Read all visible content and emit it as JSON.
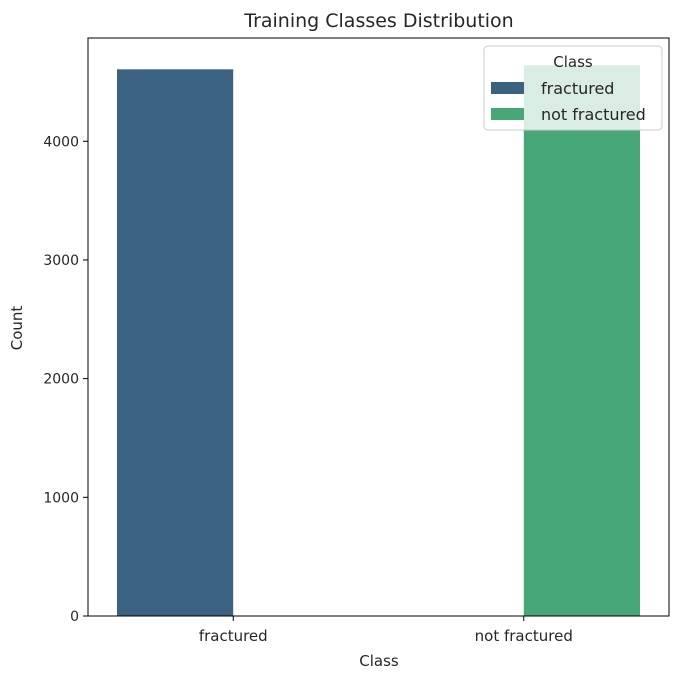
{
  "chart_data": {
    "type": "bar",
    "title": "Training Classes Distribution",
    "xlabel": "Class",
    "ylabel": "Count",
    "categories": [
      "fractured",
      "not fractured"
    ],
    "series": [
      {
        "name": "fractured",
        "values": [
          4606,
          0
        ],
        "color": "#3b6280"
      },
      {
        "name": "not fractured",
        "values": [
          0,
          4640
        ],
        "color": "#47a776"
      }
    ],
    "ylim": [
      0,
      4870
    ],
    "yticks": [
      0,
      1000,
      2000,
      3000,
      4000
    ],
    "legend": {
      "title": "Class",
      "position": "top-right",
      "entries": [
        "fractured",
        "not fractured"
      ]
    },
    "grid": false
  }
}
